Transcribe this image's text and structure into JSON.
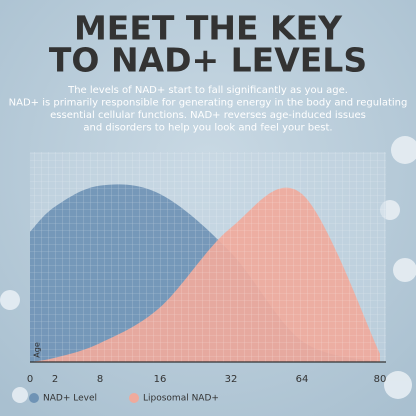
{
  "chart_data": {
    "type": "area",
    "title_lines": [
      "MEET THE KEY",
      "TO NAD+ LEVELS"
    ],
    "text_lines": [
      "The levels of NAD+ start to fall significantly as you age.",
      "NAD+ is primarily responsible for generating energy in the body and regulating",
      "essential cellular functions. NAD+ reverses age-induced issues",
      "and disorders to help you look and feel your best."
    ],
    "x_label": "Age",
    "categories": [
      "0",
      "2",
      "8",
      "16",
      "32",
      "64",
      "80"
    ],
    "ylim": [
      0,
      100
    ],
    "series": [
      {
        "name": "NAD+ Level",
        "color": "#6f93b5",
        "values": [
          62,
          74,
          84,
          80,
          52,
          10,
          0
        ]
      },
      {
        "name": "Liposomal NAD+",
        "color": "#f0aa9c",
        "values": [
          0,
          2,
          9,
          26,
          64,
          80,
          4
        ]
      }
    ],
    "legend": "bottom-left"
  }
}
